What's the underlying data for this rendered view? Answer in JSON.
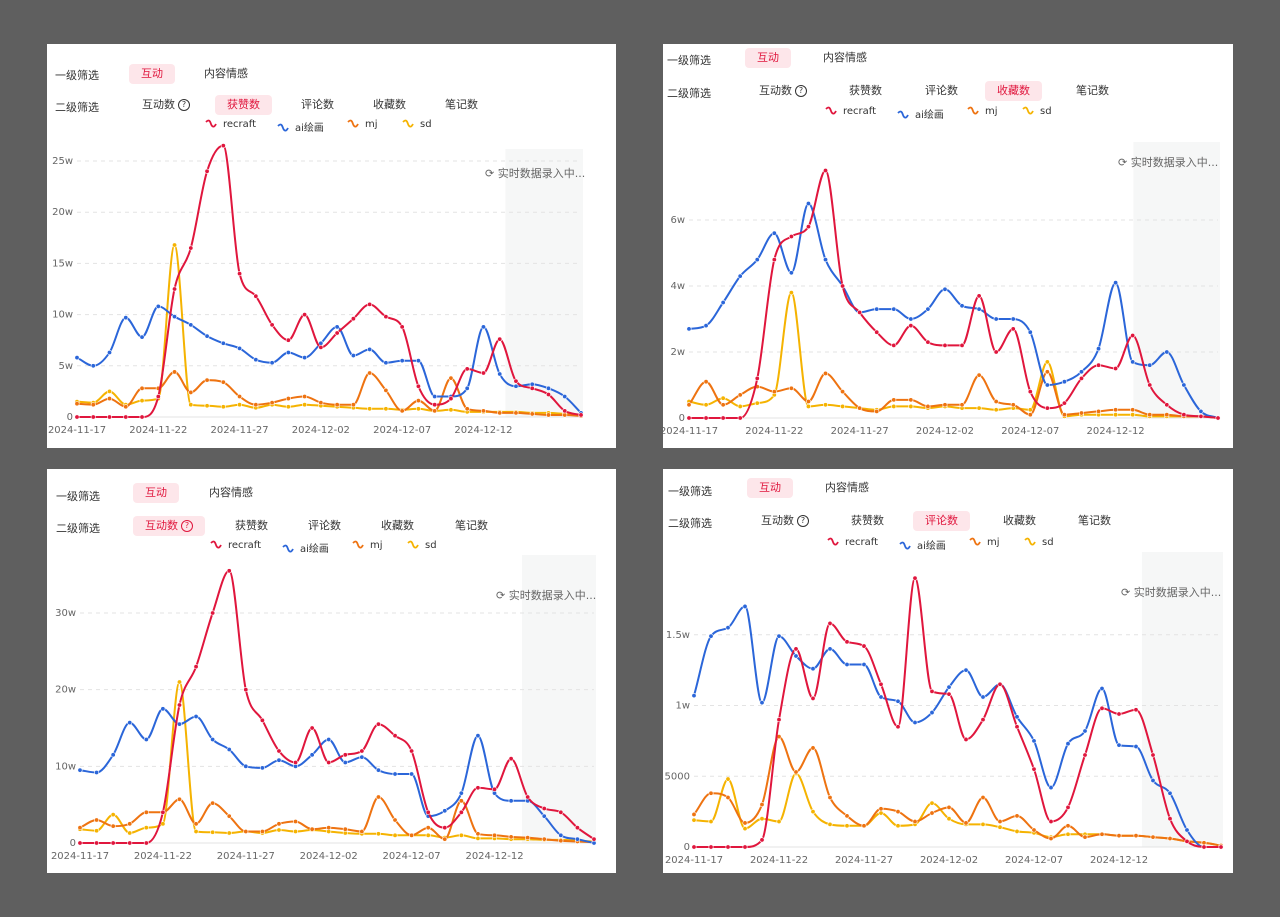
{
  "filters": {
    "level1_label": "一级筛选",
    "level2_label": "二级筛选",
    "level1_options": [
      "互动",
      "内容情感"
    ],
    "level2_options": [
      "互动数",
      "获赞数",
      "评论数",
      "收藏数",
      "笔记数"
    ]
  },
  "realtime_text": "实时数据录入中...",
  "colors": {
    "recraft": "#e0163d",
    "ai绘画": "#2b66d9",
    "mj": "#ee7311",
    "sd": "#f5b301",
    "active_bg": "#fde6ea",
    "shade": "#f6f7f7",
    "grid": "#e3e3e3"
  },
  "x_labels": [
    "2024-11-17",
    "2024-11-22",
    "2024-11-27",
    "2024-12-02",
    "2024-12-07",
    "2024-12-12"
  ],
  "legend": [
    "recraft",
    "ai绘画",
    "mj",
    "sd"
  ],
  "chart_data": [
    {
      "type": "line",
      "active_level1": "互动",
      "active_level2": "获赞数",
      "y_ticks": [
        "0",
        "5w",
        "10w",
        "15w",
        "20w",
        "25w"
      ],
      "ylim": [
        0,
        250000
      ],
      "x": [
        "2024-11-17",
        "2024-11-18",
        "2024-11-19",
        "2024-11-20",
        "2024-11-21",
        "2024-11-22",
        "2024-11-23",
        "2024-11-24",
        "2024-11-25",
        "2024-11-26",
        "2024-11-27",
        "2024-11-28",
        "2024-11-29",
        "2024-11-30",
        "2024-12-01",
        "2024-12-02",
        "2024-12-03",
        "2024-12-04",
        "2024-12-05",
        "2024-12-06",
        "2024-12-07",
        "2024-12-08",
        "2024-12-09",
        "2024-12-10",
        "2024-12-11",
        "2024-12-12",
        "2024-12-13",
        "2024-12-14",
        "2024-12-15",
        "2024-12-16",
        "2024-12-17",
        "2024-12-18"
      ],
      "series": [
        {
          "name": "recraft",
          "values": [
            0,
            0,
            0,
            0,
            0,
            20000,
            125000,
            165000,
            240000,
            265000,
            140000,
            118000,
            90000,
            75000,
            100000,
            68000,
            82000,
            96000,
            110000,
            98000,
            88000,
            30000,
            12000,
            18000,
            47000,
            43000,
            76000,
            35000,
            28000,
            22000,
            6000,
            2000
          ]
        },
        {
          "name": "ai绘画",
          "values": [
            58000,
            50000,
            63000,
            97000,
            78000,
            108000,
            98000,
            90000,
            79000,
            72000,
            67000,
            56000,
            53000,
            63000,
            58000,
            72000,
            88000,
            60000,
            66000,
            53000,
            55000,
            55000,
            20000,
            20000,
            28000,
            88000,
            42000,
            30000,
            32000,
            28000,
            20000,
            4000
          ]
        },
        {
          "name": "mj",
          "values": [
            13000,
            12000,
            18000,
            10000,
            28000,
            28000,
            44000,
            24000,
            36000,
            34000,
            20000,
            12000,
            14000,
            18000,
            20000,
            14000,
            12000,
            12000,
            43000,
            26000,
            6000,
            16000,
            6000,
            38000,
            8000,
            6000,
            4000,
            4000,
            3000,
            2000,
            2000,
            1000
          ]
        },
        {
          "name": "sd",
          "values": [
            15000,
            14000,
            25000,
            12000,
            16000,
            18000,
            168000,
            12000,
            11000,
            10000,
            12000,
            9000,
            12000,
            10000,
            12000,
            11000,
            10000,
            9000,
            8000,
            8000,
            7000,
            8000,
            6000,
            7000,
            5000,
            5000,
            5000,
            5000,
            4000,
            4000,
            3000,
            2000
          ]
        }
      ]
    },
    {
      "type": "line",
      "active_level1": "互动",
      "active_level2": "收藏数",
      "y_ticks": [
        "0",
        "2w",
        "4w",
        "6w"
      ],
      "ylim": [
        0,
        80000
      ],
      "x": [
        "2024-11-17",
        "2024-11-18",
        "2024-11-19",
        "2024-11-20",
        "2024-11-21",
        "2024-11-22",
        "2024-11-23",
        "2024-11-24",
        "2024-11-25",
        "2024-11-26",
        "2024-11-27",
        "2024-11-28",
        "2024-11-29",
        "2024-11-30",
        "2024-12-01",
        "2024-12-02",
        "2024-12-03",
        "2024-12-04",
        "2024-12-05",
        "2024-12-06",
        "2024-12-07",
        "2024-12-08",
        "2024-12-09",
        "2024-12-10",
        "2024-12-11",
        "2024-12-12",
        "2024-12-13",
        "2024-12-14",
        "2024-12-15",
        "2024-12-16",
        "2024-12-17",
        "2024-12-18"
      ],
      "series": [
        {
          "name": "recraft",
          "values": [
            0,
            0,
            0,
            0,
            12000,
            48000,
            55000,
            58000,
            75000,
            40000,
            32000,
            26000,
            22000,
            28000,
            23000,
            22000,
            22000,
            37000,
            20000,
            27000,
            8000,
            3000,
            4500,
            12000,
            16000,
            15000,
            25000,
            10000,
            4000,
            1000,
            500,
            0
          ]
        },
        {
          "name": "ai绘画",
          "values": [
            27000,
            28000,
            35000,
            43000,
            48000,
            56000,
            44000,
            65000,
            48000,
            40000,
            32000,
            33000,
            33000,
            30000,
            33000,
            39000,
            34000,
            33000,
            30000,
            30000,
            26000,
            10000,
            11000,
            14000,
            21000,
            41000,
            17000,
            16000,
            20000,
            10000,
            2000,
            0
          ]
        },
        {
          "name": "mj",
          "values": [
            4000,
            11000,
            4000,
            7000,
            9500,
            8000,
            9000,
            5000,
            13500,
            8000,
            3000,
            2000,
            5500,
            5500,
            3500,
            4000,
            4000,
            13000,
            5000,
            4000,
            1000,
            14000,
            1000,
            1500,
            2000,
            2500,
            2500,
            1000,
            1000,
            500,
            500,
            0
          ]
        },
        {
          "name": "sd",
          "values": [
            5000,
            4000,
            6000,
            3500,
            4500,
            7000,
            38000,
            3500,
            4000,
            3500,
            3000,
            2500,
            3500,
            3500,
            3000,
            3500,
            3000,
            3000,
            2500,
            3000,
            2500,
            17000,
            500,
            1000,
            1000,
            1000,
            1000,
            500,
            500,
            500,
            500,
            0
          ]
        }
      ]
    },
    {
      "type": "line",
      "active_level1": "互动",
      "active_level2": "互动数",
      "y_ticks": [
        "0",
        "10w",
        "20w",
        "30w"
      ],
      "ylim": [
        0,
        360000
      ],
      "x": [
        "2024-11-17",
        "2024-11-18",
        "2024-11-19",
        "2024-11-20",
        "2024-11-21",
        "2024-11-22",
        "2024-11-23",
        "2024-11-24",
        "2024-11-25",
        "2024-11-26",
        "2024-11-27",
        "2024-11-28",
        "2024-11-29",
        "2024-11-30",
        "2024-12-01",
        "2024-12-02",
        "2024-12-03",
        "2024-12-04",
        "2024-12-05",
        "2024-12-06",
        "2024-12-07",
        "2024-12-08",
        "2024-12-09",
        "2024-12-10",
        "2024-12-11",
        "2024-12-12",
        "2024-12-13",
        "2024-12-14",
        "2024-12-15",
        "2024-12-16",
        "2024-12-17",
        "2024-12-18"
      ],
      "series": [
        {
          "name": "recraft",
          "values": [
            0,
            0,
            0,
            0,
            0,
            40000,
            180000,
            230000,
            300000,
            355000,
            200000,
            160000,
            120000,
            105000,
            150000,
            105000,
            115000,
            120000,
            155000,
            140000,
            120000,
            40000,
            20000,
            40000,
            72000,
            70000,
            110000,
            60000,
            45000,
            40000,
            20000,
            5000
          ]
        },
        {
          "name": "ai绘画",
          "values": [
            95000,
            92000,
            115000,
            157000,
            135000,
            175000,
            155000,
            165000,
            135000,
            122000,
            100000,
            98000,
            108000,
            100000,
            115000,
            135000,
            105000,
            112000,
            95000,
            90000,
            90000,
            35000,
            42000,
            65000,
            140000,
            65000,
            55000,
            55000,
            35000,
            10000,
            5000,
            0
          ]
        },
        {
          "name": "mj",
          "values": [
            20000,
            30000,
            22000,
            25000,
            40000,
            40000,
            57000,
            25000,
            52000,
            35000,
            15000,
            15000,
            25000,
            28000,
            18000,
            20000,
            18000,
            15000,
            60000,
            30000,
            10000,
            20000,
            5000,
            55000,
            12000,
            10000,
            8000,
            7000,
            5000,
            3000,
            2000,
            1000
          ]
        },
        {
          "name": "sd",
          "values": [
            18000,
            16000,
            37000,
            13000,
            20000,
            25000,
            210000,
            15000,
            14000,
            13000,
            15000,
            13000,
            17000,
            15000,
            17000,
            15000,
            13000,
            12000,
            12000,
            10000,
            10000,
            10000,
            7000,
            10000,
            6000,
            6000,
            5000,
            5000,
            4000,
            4000,
            3000,
            2000
          ]
        }
      ]
    },
    {
      "type": "line",
      "active_level1": "互动",
      "active_level2": "评论数",
      "y_ticks": [
        "0",
        "5000",
        "1w",
        "1.5w"
      ],
      "ylim": [
        0,
        20000
      ],
      "x": [
        "2024-11-17",
        "2024-11-18",
        "2024-11-19",
        "2024-11-20",
        "2024-11-21",
        "2024-11-22",
        "2024-11-23",
        "2024-11-24",
        "2024-11-25",
        "2024-11-26",
        "2024-11-27",
        "2024-11-28",
        "2024-11-29",
        "2024-11-30",
        "2024-12-01",
        "2024-12-02",
        "2024-12-03",
        "2024-12-04",
        "2024-12-05",
        "2024-12-06",
        "2024-12-07",
        "2024-12-08",
        "2024-12-09",
        "2024-12-10",
        "2024-12-11",
        "2024-12-12",
        "2024-12-13",
        "2024-12-14",
        "2024-12-15",
        "2024-12-16",
        "2024-12-17",
        "2024-12-18"
      ],
      "series": [
        {
          "name": "recraft",
          "values": [
            0,
            0,
            0,
            0,
            500,
            9000,
            14000,
            10500,
            15800,
            14500,
            14200,
            11500,
            8500,
            19000,
            11000,
            10800,
            7600,
            9000,
            11500,
            8500,
            5500,
            1800,
            2800,
            6500,
            9800,
            9400,
            9700,
            6500,
            2000,
            400,
            0,
            0
          ]
        },
        {
          "name": "ai绘画",
          "values": [
            10700,
            14900,
            15500,
            17000,
            10200,
            14900,
            13500,
            12600,
            14000,
            12900,
            12900,
            10600,
            10300,
            8800,
            9500,
            11300,
            12500,
            10600,
            11500,
            9200,
            7500,
            4200,
            7300,
            8200,
            11200,
            7200,
            7100,
            4700,
            3800,
            1200,
            0,
            0
          ]
        },
        {
          "name": "mj",
          "values": [
            2300,
            3800,
            3500,
            1700,
            3000,
            7800,
            5300,
            7000,
            3500,
            2200,
            1500,
            2700,
            2500,
            1800,
            2400,
            2800,
            1700,
            3500,
            1800,
            2200,
            1200,
            600,
            1500,
            700,
            900,
            800,
            800,
            700,
            600,
            400,
            300,
            100
          ]
        },
        {
          "name": "sd",
          "values": [
            1900,
            1800,
            4800,
            1300,
            2000,
            1800,
            5200,
            2500,
            1600,
            1500,
            1500,
            2400,
            1500,
            1600,
            3100,
            2000,
            1600,
            1600,
            1400,
            1100,
            1000,
            700,
            900,
            900,
            900,
            800,
            800,
            700,
            600,
            400,
            300,
            100
          ]
        }
      ]
    }
  ]
}
